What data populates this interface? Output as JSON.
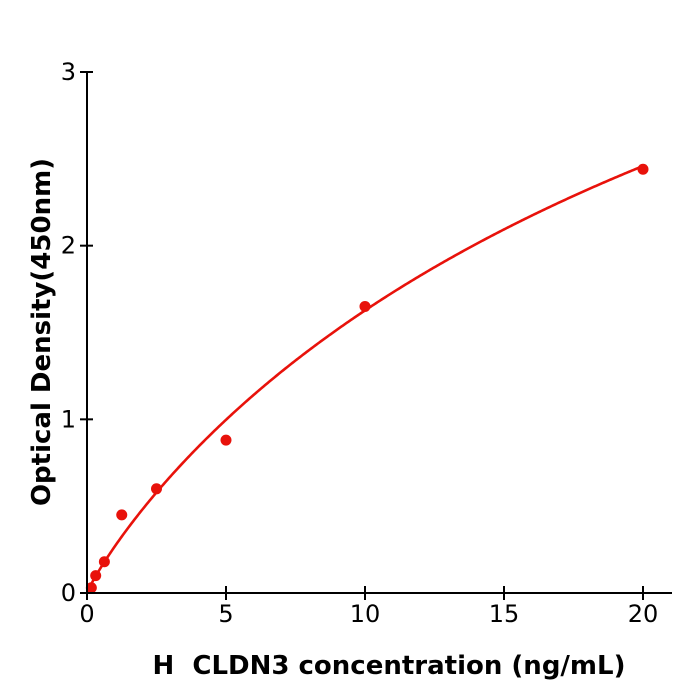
{
  "chart_data": {
    "type": "scatter",
    "title": "",
    "xlabel": "H  CLDN3 concentration (ng/mL)",
    "ylabel": "Optical Density(450nm)",
    "points": [
      {
        "x": 0.156,
        "y": 0.03
      },
      {
        "x": 0.313,
        "y": 0.1
      },
      {
        "x": 0.625,
        "y": 0.18
      },
      {
        "x": 1.25,
        "y": 0.45
      },
      {
        "x": 2.5,
        "y": 0.6
      },
      {
        "x": 5,
        "y": 0.88
      },
      {
        "x": 10,
        "y": 1.65
      },
      {
        "x": 20,
        "y": 2.44
      }
    ],
    "fit_curve": {
      "model": "4PL y = A + (B-A)/(1+(C/x)^D)",
      "A": 0,
      "B": 6,
      "C": 30,
      "D": 0.9,
      "x_start": 0,
      "x_end": 20
    },
    "x_ticks": [
      0,
      5,
      10,
      15,
      20
    ],
    "y_ticks": [
      0,
      1,
      2,
      3
    ],
    "xlim": [
      0,
      21
    ],
    "ylim": [
      0,
      3
    ],
    "grid": false,
    "legend": null,
    "marker_radius_px": 5.5,
    "colors": {
      "series": "#e8120b",
      "axis": "#000000",
      "text": "#000000",
      "background": "#ffffff"
    }
  }
}
